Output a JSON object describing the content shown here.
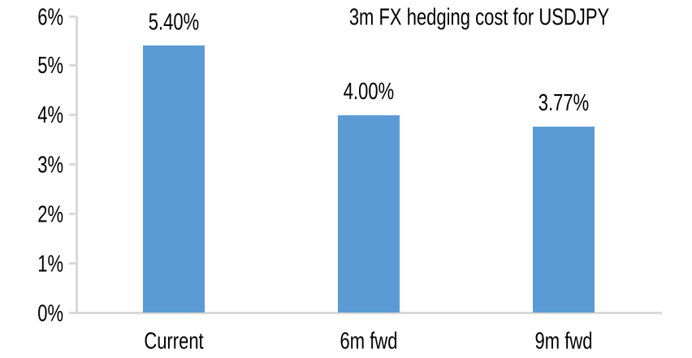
{
  "chart_data": {
    "type": "bar",
    "title": "3m FX hedging cost for USDJPY",
    "categories": [
      "Current",
      "6m fwd",
      "9m fwd"
    ],
    "values": [
      5.4,
      4.0,
      3.77
    ],
    "value_labels": [
      "5.40%",
      "4.00%",
      "3.77%"
    ],
    "xlabel": "",
    "ylabel": "",
    "ylim": [
      0,
      6
    ],
    "yticks": [
      6,
      5,
      4,
      3,
      2,
      1,
      0
    ],
    "ytick_labels": [
      "6%",
      "5%",
      "4%",
      "3%",
      "2%",
      "1%",
      "0%"
    ],
    "grid": false,
    "legend": false,
    "layout_hints": {
      "tick_style": "outside",
      "data_labels_position": "above-bars",
      "title_position": "top-right-of-center"
    },
    "colors": {
      "bar": "#5B9BD5",
      "axis": "#D9D9D9",
      "text": "#000000",
      "background": "#FFFFFF"
    }
  }
}
